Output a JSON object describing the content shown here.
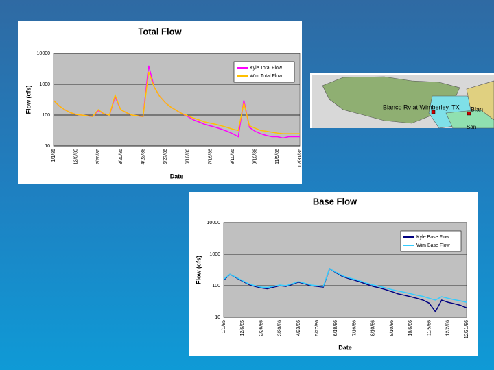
{
  "chart_data": [
    {
      "type": "line",
      "title": "Total Flow",
      "xlabel": "Date",
      "ylabel": "Flow (cfs)",
      "log_y": true,
      "grid": true,
      "legend": "top-right",
      "ylim": [
        10,
        10000
      ],
      "yticks": [
        10,
        100,
        1000,
        10000
      ],
      "categories": [
        "1/1/85",
        null,
        null,
        null,
        "12/6/85",
        null,
        null,
        null,
        "2/26/86",
        null,
        null,
        null,
        "3/20/86",
        null,
        null,
        null,
        "4/23/86",
        null,
        null,
        null,
        "5/27/86",
        null,
        null,
        null,
        "6/18/86",
        null,
        null,
        null,
        "7/16/86",
        null,
        null,
        null,
        "8/10/86",
        null,
        null,
        null,
        "9/10/86",
        null,
        null,
        null,
        "11/5/86",
        null,
        null,
        null,
        "12/31/86"
      ],
      "series": [
        {
          "name": "Kyle Total Flow",
          "color": "#ff00ff",
          "values": [
            300,
            200,
            150,
            120,
            105,
            100,
            95,
            90,
            140,
            110,
            100,
            400,
            150,
            120,
            100,
            95,
            90,
            4000,
            800,
            400,
            250,
            180,
            140,
            110,
            90,
            70,
            60,
            50,
            45,
            40,
            35,
            30,
            25,
            20,
            300,
            40,
            30,
            25,
            22,
            20,
            20,
            18,
            20,
            20,
            20
          ]
        },
        {
          "name": "Wim Total Flow",
          "color": "#ffc000",
          "values": [
            300,
            200,
            150,
            120,
            105,
            100,
            95,
            90,
            150,
            110,
            100,
            450,
            150,
            120,
            100,
            95,
            90,
            2500,
            800,
            400,
            250,
            180,
            140,
            110,
            95,
            80,
            70,
            60,
            55,
            50,
            45,
            40,
            35,
            32,
            250,
            45,
            38,
            32,
            30,
            28,
            26,
            25,
            25,
            25,
            25
          ]
        }
      ]
    },
    {
      "type": "line",
      "title": "Base Flow",
      "xlabel": "Date",
      "ylabel": "Flow (cfs)",
      "log_y": true,
      "grid": true,
      "legend": "top-right",
      "ylim": [
        10,
        10000
      ],
      "yticks": [
        10,
        100,
        1000,
        10000
      ],
      "categories": [
        "1/1/85",
        null,
        null,
        "12/6/85",
        null,
        null,
        "2/26/86",
        null,
        null,
        "3/20/86",
        null,
        null,
        "4/23/86",
        null,
        null,
        "5/27/86",
        null,
        null,
        "6/18/86",
        null,
        null,
        "7/16/86",
        null,
        null,
        "8/10/86",
        null,
        null,
        "9/10/86",
        null,
        null,
        "10/6/86",
        null,
        null,
        "11/5/86",
        null,
        null,
        "12/2/86",
        null,
        null,
        "12/31/86"
      ],
      "series": [
        {
          "name": "Kyle Base Flow",
          "color": "#000080",
          "values": [
            150,
            230,
            180,
            140,
            110,
            95,
            85,
            80,
            90,
            100,
            95,
            110,
            130,
            115,
            100,
            95,
            90,
            350,
            260,
            200,
            170,
            150,
            130,
            110,
            95,
            85,
            75,
            65,
            55,
            50,
            45,
            40,
            35,
            28,
            15,
            35,
            30,
            27,
            24,
            20
          ]
        },
        {
          "name": "Wim Base Flow",
          "color": "#33ccff",
          "values": [
            160,
            230,
            185,
            145,
            115,
            100,
            90,
            88,
            95,
            105,
            100,
            115,
            135,
            120,
            105,
            100,
            95,
            350,
            270,
            210,
            180,
            160,
            140,
            120,
            105,
            95,
            85,
            75,
            68,
            62,
            56,
            50,
            46,
            40,
            35,
            45,
            40,
            36,
            33,
            30
          ]
        }
      ]
    }
  ],
  "map": {
    "labels": [
      "Blanco Rv at Wimberley, TX",
      "Blan",
      "San"
    ]
  }
}
